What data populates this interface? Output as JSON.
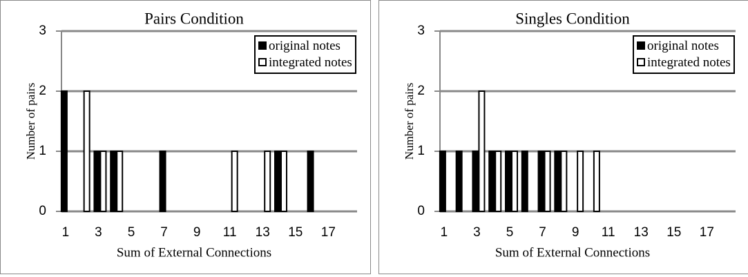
{
  "chart_data": [
    {
      "type": "bar",
      "title": "Pairs Condition",
      "x_label": "Sum of External Connections",
      "y_label": "Number of pairs",
      "categories": [
        1,
        null,
        3,
        null,
        5,
        null,
        7,
        null,
        9,
        null,
        11,
        null,
        13,
        null,
        15,
        null,
        17,
        null
      ],
      "series": [
        {
          "name": "original notes",
          "color": "#000000",
          "values": [
            2,
            0,
            1,
            1,
            0,
            0,
            1,
            0,
            0,
            0,
            0,
            0,
            0,
            1,
            0,
            1,
            0,
            0
          ]
        },
        {
          "name": "integrated notes",
          "color": "#ffffff",
          "values": [
            0,
            2,
            1,
            1,
            0,
            0,
            0,
            0,
            0,
            0,
            1,
            0,
            1,
            1,
            0,
            0,
            0,
            0
          ]
        }
      ],
      "ylim": [
        0,
        3
      ],
      "yticks": [
        0,
        1,
        2,
        3
      ],
      "grid": true,
      "legend": "upper right"
    },
    {
      "type": "bar",
      "title": "Singles Condition",
      "x_label": "Sum of External Connections",
      "y_label": "Number of pairs",
      "categories": [
        1,
        null,
        3,
        null,
        5,
        null,
        7,
        null,
        9,
        null,
        11,
        null,
        13,
        null,
        15,
        null,
        17,
        null
      ],
      "series": [
        {
          "name": "original notes",
          "color": "#000000",
          "values": [
            1,
            1,
            1,
            1,
            1,
            1,
            1,
            1,
            0,
            0,
            0,
            0,
            0,
            0,
            0,
            0,
            0,
            0
          ]
        },
        {
          "name": "integrated notes",
          "color": "#ffffff",
          "values": [
            0,
            0,
            2,
            1,
            1,
            0,
            1,
            1,
            1,
            1,
            0,
            0,
            0,
            0,
            0,
            0,
            0,
            0
          ]
        }
      ],
      "ylim": [
        0,
        3
      ],
      "yticks": [
        0,
        1,
        2,
        3
      ],
      "grid": true,
      "legend": "upper right"
    }
  ]
}
